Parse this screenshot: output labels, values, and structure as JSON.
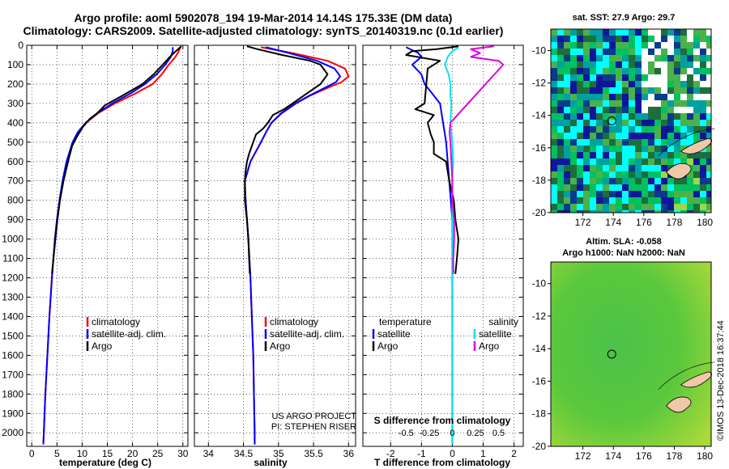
{
  "header": {
    "line1": "Argo profile: aoml 5902078_194 19-Mar-2014 14.14S 175.33E (DM data)",
    "line2": "Climatology: CARS2009. Satellite-adjusted climatology: synTS_20140319.nc (0.1d earlier)"
  },
  "credit": {
    "project": "US ARGO PROJECT",
    "pi": "PI: STEPHEN RISER",
    "imos": "©IMOS 13-Dec-2018 16:37:44"
  },
  "colors": {
    "climatology": "#ff0000",
    "satellite": "#0000ff",
    "argo": "#000000",
    "sat_salinity": "#00e5ee",
    "argo_salinity": "#e000e0"
  },
  "maps": {
    "sst_title": "sat. SST: 27.9 Argo: 29.7",
    "sla_title1": "Altim. SLA: -0.058",
    "sla_title2": "Argo h1000: NaN h2000: NaN",
    "lat_ticks": [
      "-10",
      "-12",
      "-14",
      "-16",
      "-18",
      "-20"
    ],
    "lon_ticks": [
      "172",
      "174",
      "176",
      "178",
      "180"
    ]
  },
  "chart_data": [
    {
      "type": "line",
      "id": "temperature",
      "xlabel": "temperature (deg C)",
      "ylabel": "",
      "xlim": [
        -1,
        31
      ],
      "ylim": [
        2070,
        0
      ],
      "x_ticks": [
        0,
        5,
        10,
        15,
        20,
        25,
        30
      ],
      "y_ticks": [
        0,
        100,
        200,
        300,
        400,
        500,
        600,
        700,
        800,
        900,
        1000,
        1100,
        1200,
        1300,
        1400,
        1500,
        1600,
        1700,
        1800,
        1900,
        2000
      ],
      "legend": [
        "climatology",
        "satellite-adj. clim.",
        "Argo"
      ],
      "legend_position": "lower-left",
      "series": [
        {
          "name": "climatology",
          "color": "#ff0000",
          "depth": [
            10,
            30,
            60,
            100,
            150,
            200,
            250,
            300,
            350,
            400,
            450,
            500,
            600,
            700,
            800,
            900,
            1000,
            1200,
            1400,
            1600,
            1800,
            2000,
            2060
          ],
          "values": [
            29.5,
            29.2,
            28.5,
            27.2,
            25.8,
            24.0,
            20.5,
            16.5,
            13.2,
            10.8,
            9.2,
            8.2,
            7.0,
            6.2,
            5.6,
            5.0,
            4.6,
            4.0,
            3.5,
            3.1,
            2.7,
            2.4,
            2.3
          ]
        },
        {
          "name": "satellite-adj. clim.",
          "color": "#0000ff",
          "depth": [
            10,
            30,
            60,
            100,
            150,
            200,
            250,
            300,
            350,
            400,
            450,
            500,
            600,
            700,
            800,
            900,
            1000,
            1200,
            1400,
            1600,
            1800,
            2000,
            2060
          ],
          "values": [
            28.0,
            28.0,
            27.6,
            26.5,
            24.8,
            22.5,
            19.5,
            16.0,
            13.0,
            10.7,
            9.1,
            8.1,
            6.9,
            6.1,
            5.5,
            5.0,
            4.6,
            4.0,
            3.5,
            3.1,
            2.7,
            2.4,
            2.3
          ]
        },
        {
          "name": "Argo",
          "color": "#000000",
          "depth": [
            5,
            30,
            60,
            100,
            150,
            200,
            260,
            310,
            330,
            350,
            380,
            420,
            470,
            520,
            600,
            700,
            800,
            900,
            1000,
            1100,
            1180
          ],
          "values": [
            29.7,
            28.6,
            27.4,
            26.0,
            24.2,
            22.0,
            18.0,
            14.5,
            13.8,
            13.0,
            11.5,
            10.2,
            9.0,
            8.0,
            7.2,
            6.3,
            5.6,
            5.1,
            4.7,
            4.3,
            4.0
          ]
        }
      ]
    },
    {
      "type": "line",
      "id": "salinity",
      "xlabel": "salinity",
      "ylabel": "",
      "xlim": [
        33.8,
        36.1
      ],
      "ylim": [
        2070,
        0
      ],
      "x_ticks": [
        34,
        34.5,
        35,
        35.5,
        36
      ],
      "legend": [
        "climatology",
        "satellite-adj. clim.",
        "Argo"
      ],
      "legend_position": "lower-right",
      "series": [
        {
          "name": "climatology",
          "color": "#ff0000",
          "depth": [
            10,
            40,
            80,
            120,
            160,
            190,
            220,
            260,
            300,
            350,
            400,
            450,
            500,
            600,
            700,
            800,
            900,
            1000,
            1200,
            1400,
            1600,
            1800,
            2000,
            2060
          ],
          "values": [
            34.75,
            35.2,
            35.7,
            35.95,
            36.0,
            35.9,
            35.7,
            35.45,
            35.25,
            35.05,
            34.9,
            34.82,
            34.75,
            34.6,
            34.52,
            34.53,
            34.55,
            34.57,
            34.6,
            34.62,
            34.64,
            34.65,
            34.66,
            34.66
          ]
        },
        {
          "name": "satellite-adj. clim.",
          "color": "#0000ff",
          "depth": [
            10,
            40,
            80,
            120,
            160,
            190,
            220,
            260,
            300,
            350,
            400,
            450,
            500,
            600,
            700,
            800,
            900,
            1000,
            1200,
            1400,
            1600,
            1800,
            2000,
            2060
          ],
          "values": [
            34.82,
            35.15,
            35.55,
            35.8,
            35.88,
            35.82,
            35.66,
            35.44,
            35.24,
            35.04,
            34.9,
            34.82,
            34.75,
            34.6,
            34.52,
            34.53,
            34.55,
            34.57,
            34.6,
            34.62,
            34.64,
            34.65,
            34.66,
            34.66
          ]
        },
        {
          "name": "Argo",
          "color": "#000000",
          "depth": [
            5,
            20,
            50,
            80,
            100,
            150,
            200,
            250,
            300,
            330,
            360,
            400,
            430,
            460,
            520,
            560,
            600,
            650,
            700,
            800,
            900,
            1000,
            1100,
            1180
          ],
          "values": [
            34.55,
            34.7,
            35.05,
            35.45,
            35.6,
            35.7,
            35.6,
            35.4,
            35.2,
            35.08,
            34.92,
            34.85,
            34.78,
            34.68,
            34.62,
            34.58,
            34.55,
            34.53,
            34.52,
            34.52,
            34.55,
            34.57,
            34.58,
            34.59
          ]
        }
      ]
    },
    {
      "type": "line",
      "id": "difference",
      "xlabel": "T difference from climatology",
      "xlabel2": "S difference from climatology",
      "xlim": [
        -2.9,
        2.3
      ],
      "x_ticks": [
        -2,
        -1,
        0,
        1,
        2
      ],
      "s_ticks": [
        "-0.5",
        "-0.25",
        "0",
        "0.25",
        "0.5"
      ],
      "ylim": [
        2070,
        0
      ],
      "legend_t_title": "temperature",
      "legend_s_title": "salinity",
      "legend_t": [
        "satellite",
        "Argo"
      ],
      "legend_s": [
        "satellite",
        "Argo"
      ],
      "series": [
        {
          "name": "T satellite",
          "color": "#0000ff",
          "depth": [
            10,
            40,
            60,
            100,
            150,
            200,
            260,
            300,
            400,
            500,
            600,
            700,
            800,
            900,
            1000,
            1100,
            1200,
            1300,
            1400,
            1600,
            2060
          ],
          "values": [
            -1.5,
            -1.1,
            -1.0,
            -1.3,
            -1.0,
            -0.9,
            -0.6,
            -0.4,
            -0.3,
            -0.2,
            -0.15,
            -0.1,
            -0.05,
            0,
            0,
            0,
            0,
            0,
            0,
            0,
            0
          ]
        },
        {
          "name": "T Argo",
          "color": "#000000",
          "depth": [
            5,
            20,
            30,
            50,
            80,
            120,
            300,
            330,
            360,
            400,
            460,
            500,
            560,
            600,
            700,
            800,
            900,
            1000,
            1100,
            1180
          ],
          "values": [
            0.2,
            -0.5,
            -1.3,
            -1.5,
            -0.4,
            -0.8,
            -0.9,
            -1.2,
            -0.6,
            -0.8,
            -0.7,
            -0.6,
            -0.6,
            -0.2,
            -0.1,
            0.05,
            0.1,
            0.2,
            0.15,
            0.1
          ]
        },
        {
          "name": "S satellite",
          "color": "#00e5ee",
          "depth": [
            10,
            30,
            60,
            100,
            150,
            200,
            260,
            300,
            400,
            500,
            600,
            700,
            800,
            900,
            1000,
            1200,
            1400,
            1600,
            1800,
            2060
          ],
          "values": [
            0.07,
            0.0,
            -0.05,
            -0.08,
            -0.04,
            -0.02,
            -0.02,
            -0.01,
            -0.02,
            0.0,
            0.01,
            0.0,
            0.0,
            0.0,
            0.0,
            0.0,
            0.0,
            0.0,
            0.0,
            0.0
          ]
        },
        {
          "name": "S Argo",
          "color": "#e000e0",
          "depth": [
            5,
            20,
            30,
            40,
            60,
            80,
            100,
            400,
            450,
            500,
            600,
            700,
            800,
            900,
            1000,
            1100,
            1180
          ],
          "values": [
            0.45,
            0.2,
            0.25,
            0.3,
            0.2,
            0.5,
            0.55,
            -0.02,
            -0.03,
            -0.02,
            -0.01,
            0.0,
            0.0,
            0.02,
            0.02,
            0.01,
            0.01
          ]
        }
      ]
    }
  ]
}
